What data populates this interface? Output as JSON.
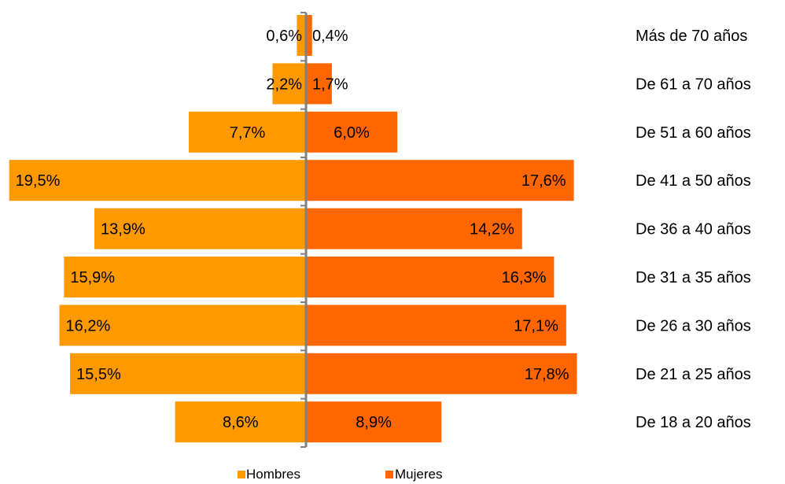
{
  "chart_data": {
    "type": "bar",
    "orientation": "horizontal-diverging",
    "categories": [
      "Más de 70 años",
      "De 61 a 70 años",
      "De 51 a 60 años",
      "De 41 a 50 años",
      "De 36 a 40 años",
      "De 31 a 35 años",
      "De 26 a 30 años",
      "De 21 a 25 años",
      "De 18 a 20 años"
    ],
    "series": [
      {
        "name": "Hombres",
        "color": "#FF9900",
        "side": "left",
        "values": [
          0.6,
          2.2,
          7.7,
          19.5,
          13.9,
          15.9,
          16.2,
          15.5,
          8.6
        ],
        "labels": [
          "0,6%",
          "2,2%",
          "7,7%",
          "19,5%",
          "13,9%",
          "15,9%",
          "16,2%",
          "15,5%",
          "8,6%"
        ]
      },
      {
        "name": "Mujeres",
        "color": "#FF6600",
        "side": "right",
        "values": [
          0.4,
          1.7,
          6.0,
          17.6,
          14.2,
          16.3,
          17.1,
          17.8,
          8.9
        ],
        "labels": [
          "0,4%",
          "1,7%",
          "6,0%",
          "17,6%",
          "14,2%",
          "16,3%",
          "17,1%",
          "17,8%",
          "8,9%"
        ]
      }
    ],
    "axis_color": "#808080",
    "legend": {
      "position": "bottom",
      "items": [
        "Hombres",
        "Mujeres"
      ]
    },
    "title": "",
    "xlabel": "",
    "ylabel": ""
  }
}
